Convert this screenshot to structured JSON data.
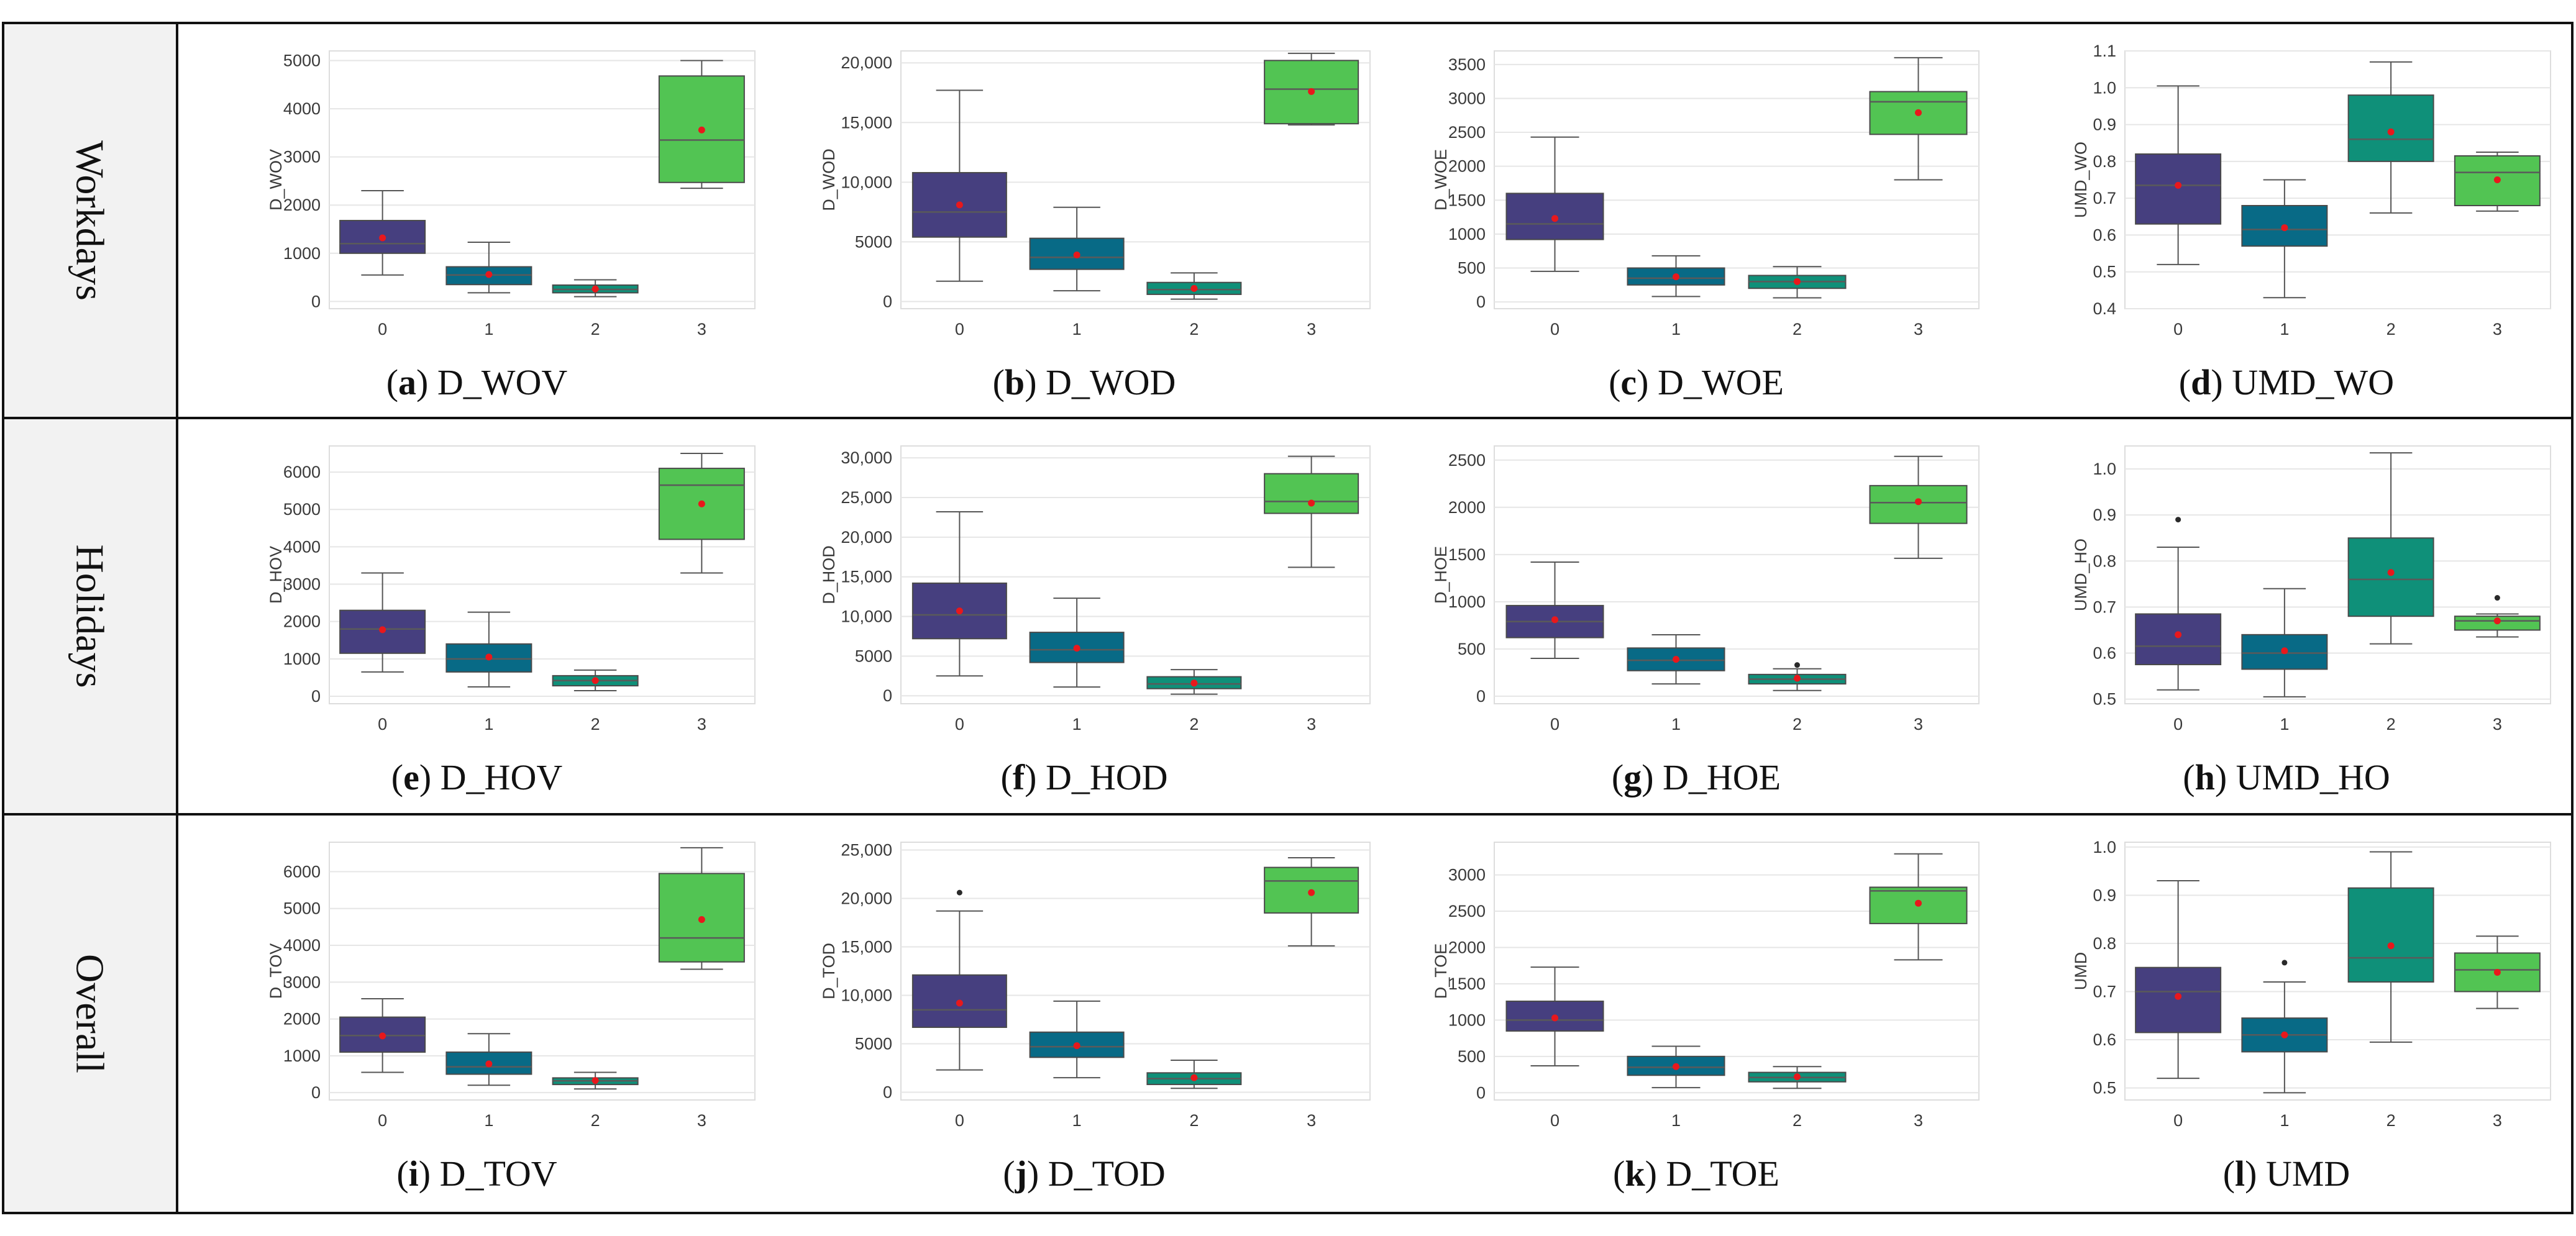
{
  "rows": [
    {
      "label": "Workdays"
    },
    {
      "label": "Holidays"
    },
    {
      "label": "Overall"
    }
  ],
  "colors": {
    "cluster": [
      "#463f7f",
      "#086a86",
      "#0f9079",
      "#52c453"
    ],
    "mean_marker": "#e8181c",
    "whisker": "#555555",
    "grid": "#e6e6e6",
    "frame": "#111111",
    "label_bg": "#f2f2f2"
  },
  "chart_data": [
    {
      "type": "box",
      "caption_letter": "a",
      "caption_name": "D_WOV",
      "ylabel": "D_WOV",
      "categories": [
        "0",
        "1",
        "2",
        "3"
      ],
      "yticks": [
        0,
        1000,
        2000,
        3000,
        4000,
        5000
      ],
      "ytick_labels": [
        "0",
        "1000",
        "2000",
        "3000",
        "4000",
        "5000"
      ],
      "ylim": [
        -150,
        5200
      ],
      "boxes": [
        {
          "whislo": 550,
          "q1": 1000,
          "med": 1200,
          "q3": 1680,
          "whishi": 2300,
          "mean": 1320,
          "fliers": []
        },
        {
          "whislo": 180,
          "q1": 350,
          "med": 550,
          "q3": 720,
          "whishi": 1230,
          "mean": 560,
          "fliers": []
        },
        {
          "whislo": 100,
          "q1": 180,
          "med": 250,
          "q3": 340,
          "whishi": 450,
          "mean": 260,
          "fliers": []
        },
        {
          "whislo": 2350,
          "q1": 2470,
          "med": 3350,
          "q3": 4680,
          "whishi": 5000,
          "mean": 3560,
          "fliers": []
        }
      ]
    },
    {
      "type": "box",
      "caption_letter": "b",
      "caption_name": "D_WOD",
      "ylabel": "D_WOD",
      "categories": [
        "0",
        "1",
        "2",
        "3"
      ],
      "yticks": [
        0,
        5000,
        10000,
        15000,
        20000
      ],
      "ytick_labels": [
        "0",
        "5000",
        "10,000",
        "15,000",
        "20,000"
      ],
      "ylim": [
        -600,
        21000
      ],
      "boxes": [
        {
          "whislo": 1700,
          "q1": 5400,
          "med": 7500,
          "q3": 10800,
          "whishi": 17700,
          "mean": 8100,
          "fliers": []
        },
        {
          "whislo": 900,
          "q1": 2700,
          "med": 3700,
          "q3": 5300,
          "whishi": 7900,
          "mean": 3900,
          "fliers": []
        },
        {
          "whislo": 200,
          "q1": 600,
          "med": 1000,
          "q3": 1600,
          "whishi": 2400,
          "mean": 1100,
          "fliers": []
        },
        {
          "whislo": 14800,
          "q1": 14900,
          "med": 17800,
          "q3": 20200,
          "whishi": 20800,
          "mean": 17600,
          "fliers": []
        }
      ]
    },
    {
      "type": "box",
      "caption_letter": "c",
      "caption_name": "D_WOE",
      "ylabel": "D_WOE",
      "categories": [
        "0",
        "1",
        "2",
        "3"
      ],
      "yticks": [
        0,
        500,
        1000,
        1500,
        2000,
        2500,
        3000,
        3500
      ],
      "ytick_labels": [
        "0",
        "500",
        "1000",
        "1500",
        "2000",
        "2500",
        "3000",
        "3500"
      ],
      "ylim": [
        -100,
        3700
      ],
      "boxes": [
        {
          "whislo": 450,
          "q1": 920,
          "med": 1150,
          "q3": 1600,
          "whishi": 2430,
          "mean": 1230,
          "fliers": []
        },
        {
          "whislo": 80,
          "q1": 250,
          "med": 350,
          "q3": 500,
          "whishi": 680,
          "mean": 370,
          "fliers": []
        },
        {
          "whislo": 60,
          "q1": 200,
          "med": 300,
          "q3": 390,
          "whishi": 520,
          "mean": 300,
          "fliers": []
        },
        {
          "whislo": 1800,
          "q1": 2470,
          "med": 2950,
          "q3": 3100,
          "whishi": 3600,
          "mean": 2790,
          "fliers": []
        }
      ]
    },
    {
      "type": "box",
      "caption_letter": "d",
      "caption_name": "UMD_WO",
      "ylabel": "UMD_WO",
      "categories": [
        "0",
        "1",
        "2",
        "3"
      ],
      "yticks": [
        0.4,
        0.5,
        0.6,
        0.7,
        0.8,
        0.9,
        1.0,
        1.1
      ],
      "ytick_labels": [
        "0.4",
        "0.5",
        "0.6",
        "0.7",
        "0.8",
        "0.9",
        "1.0",
        "1.1"
      ],
      "ylim": [
        0.4,
        1.1
      ],
      "boxes": [
        {
          "whislo": 0.52,
          "q1": 0.63,
          "med": 0.735,
          "q3": 0.82,
          "whishi": 1.005,
          "mean": 0.735,
          "fliers": []
        },
        {
          "whislo": 0.43,
          "q1": 0.57,
          "med": 0.615,
          "q3": 0.68,
          "whishi": 0.75,
          "mean": 0.62,
          "fliers": []
        },
        {
          "whislo": 0.66,
          "q1": 0.8,
          "med": 0.86,
          "q3": 0.98,
          "whishi": 1.07,
          "mean": 0.88,
          "fliers": []
        },
        {
          "whislo": 0.665,
          "q1": 0.68,
          "med": 0.77,
          "q3": 0.815,
          "whishi": 0.825,
          "mean": 0.75,
          "fliers": []
        }
      ]
    },
    {
      "type": "box",
      "caption_letter": "e",
      "caption_name": "D_HOV",
      "ylabel": "D_HOV",
      "categories": [
        "0",
        "1",
        "2",
        "3"
      ],
      "yticks": [
        0,
        1000,
        2000,
        3000,
        4000,
        5000,
        6000
      ],
      "ytick_labels": [
        "0",
        "1000",
        "2000",
        "3000",
        "4000",
        "5000",
        "6000"
      ],
      "ylim": [
        -200,
        6700
      ],
      "boxes": [
        {
          "whislo": 650,
          "q1": 1150,
          "med": 1800,
          "q3": 2300,
          "whishi": 3300,
          "mean": 1780,
          "fliers": []
        },
        {
          "whislo": 250,
          "q1": 650,
          "med": 1000,
          "q3": 1400,
          "whishi": 2250,
          "mean": 1050,
          "fliers": []
        },
        {
          "whislo": 150,
          "q1": 280,
          "med": 420,
          "q3": 550,
          "whishi": 700,
          "mean": 420,
          "fliers": []
        },
        {
          "whislo": 3300,
          "q1": 4200,
          "med": 5650,
          "q3": 6100,
          "whishi": 6500,
          "mean": 5150,
          "fliers": []
        }
      ]
    },
    {
      "type": "box",
      "caption_letter": "f",
      "caption_name": "D_HOD",
      "ylabel": "D_HOD",
      "categories": [
        "0",
        "1",
        "2",
        "3"
      ],
      "yticks": [
        0,
        5000,
        10000,
        15000,
        20000,
        25000,
        30000
      ],
      "ytick_labels": [
        "0",
        "5000",
        "10,000",
        "15,000",
        "20,000",
        "25,000",
        "30,000"
      ],
      "ylim": [
        -1000,
        31500
      ],
      "boxes": [
        {
          "whislo": 2500,
          "q1": 7200,
          "med": 10200,
          "q3": 14200,
          "whishi": 23200,
          "mean": 10700,
          "fliers": []
        },
        {
          "whislo": 1100,
          "q1": 4200,
          "med": 5800,
          "q3": 8000,
          "whishi": 12300,
          "mean": 6000,
          "fliers": []
        },
        {
          "whislo": 200,
          "q1": 900,
          "med": 1500,
          "q3": 2400,
          "whishi": 3300,
          "mean": 1600,
          "fliers": []
        },
        {
          "whislo": 16200,
          "q1": 23000,
          "med": 24500,
          "q3": 28000,
          "whishi": 30200,
          "mean": 24300,
          "fliers": []
        }
      ]
    },
    {
      "type": "box",
      "caption_letter": "g",
      "caption_name": "D_HOE",
      "ylabel": "D_HOE",
      "categories": [
        "0",
        "1",
        "2",
        "3"
      ],
      "yticks": [
        0,
        500,
        1000,
        1500,
        2000,
        2500
      ],
      "ytick_labels": [
        "0",
        "500",
        "1000",
        "1500",
        "2000",
        "2500"
      ],
      "ylim": [
        -80,
        2650
      ],
      "boxes": [
        {
          "whislo": 400,
          "q1": 620,
          "med": 790,
          "q3": 960,
          "whishi": 1420,
          "mean": 810,
          "fliers": []
        },
        {
          "whislo": 130,
          "q1": 270,
          "med": 380,
          "q3": 510,
          "whishi": 650,
          "mean": 390,
          "fliers": []
        },
        {
          "whislo": 60,
          "q1": 130,
          "med": 180,
          "q3": 230,
          "whishi": 290,
          "mean": 190,
          "fliers": [
            330
          ]
        },
        {
          "whislo": 1460,
          "q1": 1830,
          "med": 2050,
          "q3": 2230,
          "whishi": 2540,
          "mean": 2060,
          "fliers": []
        }
      ]
    },
    {
      "type": "box",
      "caption_letter": "h",
      "caption_name": "UMD_HO",
      "ylabel": "UMD_HO",
      "categories": [
        "0",
        "1",
        "2",
        "3"
      ],
      "yticks": [
        0.5,
        0.6,
        0.7,
        0.8,
        0.9,
        1.0
      ],
      "ytick_labels": [
        "0.5",
        "0.6",
        "0.7",
        "0.8",
        "0.9",
        "1.0"
      ],
      "ylim": [
        0.49,
        1.05
      ],
      "boxes": [
        {
          "whislo": 0.52,
          "q1": 0.575,
          "med": 0.615,
          "q3": 0.685,
          "whishi": 0.83,
          "mean": 0.64,
          "fliers": [
            0.89
          ]
        },
        {
          "whislo": 0.505,
          "q1": 0.565,
          "med": 0.6,
          "q3": 0.64,
          "whishi": 0.74,
          "mean": 0.605,
          "fliers": []
        },
        {
          "whislo": 0.62,
          "q1": 0.68,
          "med": 0.76,
          "q3": 0.85,
          "whishi": 1.035,
          "mean": 0.775,
          "fliers": []
        },
        {
          "whislo": 0.635,
          "q1": 0.65,
          "med": 0.67,
          "q3": 0.68,
          "whishi": 0.685,
          "mean": 0.67,
          "fliers": [
            0.72
          ]
        }
      ]
    },
    {
      "type": "box",
      "caption_letter": "i",
      "caption_name": "D_TOV",
      "ylabel": "D_TOV",
      "categories": [
        "0",
        "1",
        "2",
        "3"
      ],
      "yticks": [
        0,
        1000,
        2000,
        3000,
        4000,
        5000,
        6000
      ],
      "ytick_labels": [
        "0",
        "1000",
        "2000",
        "3000",
        "4000",
        "5000",
        "6000"
      ],
      "ylim": [
        -200,
        6800
      ],
      "boxes": [
        {
          "whislo": 550,
          "q1": 1100,
          "med": 1550,
          "q3": 2050,
          "whishi": 2550,
          "mean": 1540,
          "fliers": []
        },
        {
          "whislo": 200,
          "q1": 500,
          "med": 700,
          "q3": 1100,
          "whishi": 1600,
          "mean": 780,
          "fliers": []
        },
        {
          "whislo": 100,
          "q1": 220,
          "med": 320,
          "q3": 400,
          "whishi": 550,
          "mean": 330,
          "fliers": []
        },
        {
          "whislo": 3350,
          "q1": 3550,
          "med": 4200,
          "q3": 5950,
          "whishi": 6650,
          "mean": 4700,
          "fliers": []
        }
      ]
    },
    {
      "type": "box",
      "caption_letter": "j",
      "caption_name": "D_TOD",
      "ylabel": "D_TOD",
      "categories": [
        "0",
        "1",
        "2",
        "3"
      ],
      "yticks": [
        0,
        5000,
        10000,
        15000,
        20000,
        25000
      ],
      "ytick_labels": [
        "0",
        "5000",
        "10,000",
        "15,000",
        "20,000",
        "25,000"
      ],
      "ylim": [
        -800,
        25800
      ],
      "boxes": [
        {
          "whislo": 2300,
          "q1": 6700,
          "med": 8500,
          "q3": 12100,
          "whishi": 18700,
          "mean": 9200,
          "fliers": [
            20600
          ]
        },
        {
          "whislo": 1500,
          "q1": 3600,
          "med": 4700,
          "q3": 6200,
          "whishi": 9400,
          "mean": 4800,
          "fliers": []
        },
        {
          "whislo": 400,
          "q1": 800,
          "med": 1400,
          "q3": 2000,
          "whishi": 3300,
          "mean": 1500,
          "fliers": []
        },
        {
          "whislo": 15100,
          "q1": 18500,
          "med": 21800,
          "q3": 23200,
          "whishi": 24200,
          "mean": 20600,
          "fliers": []
        }
      ]
    },
    {
      "type": "box",
      "caption_letter": "k",
      "caption_name": "D_TOE",
      "ylabel": "D_TOE",
      "categories": [
        "0",
        "1",
        "2",
        "3"
      ],
      "yticks": [
        0,
        500,
        1000,
        1500,
        2000,
        2500,
        3000
      ],
      "ytick_labels": [
        "0",
        "500",
        "1000",
        "1500",
        "2000",
        "2500",
        "3000"
      ],
      "ylim": [
        -100,
        3450
      ],
      "boxes": [
        {
          "whislo": 370,
          "q1": 850,
          "med": 1000,
          "q3": 1260,
          "whishi": 1730,
          "mean": 1030,
          "fliers": []
        },
        {
          "whislo": 70,
          "q1": 240,
          "med": 350,
          "q3": 500,
          "whishi": 640,
          "mean": 360,
          "fliers": []
        },
        {
          "whislo": 60,
          "q1": 150,
          "med": 210,
          "q3": 280,
          "whishi": 360,
          "mean": 220,
          "fliers": []
        },
        {
          "whislo": 1830,
          "q1": 2330,
          "med": 2780,
          "q3": 2830,
          "whishi": 3290,
          "mean": 2610,
          "fliers": []
        }
      ]
    },
    {
      "type": "box",
      "caption_letter": "l",
      "caption_name": "UMD",
      "ylabel": "UMD",
      "categories": [
        "0",
        "1",
        "2",
        "3"
      ],
      "yticks": [
        0.5,
        0.6,
        0.7,
        0.8,
        0.9,
        1.0
      ],
      "ytick_labels": [
        "0.5",
        "0.6",
        "0.7",
        "0.8",
        "0.9",
        "1.0"
      ],
      "ylim": [
        0.475,
        1.01
      ],
      "boxes": [
        {
          "whislo": 0.52,
          "q1": 0.615,
          "med": 0.7,
          "q3": 0.75,
          "whishi": 0.93,
          "mean": 0.69,
          "fliers": []
        },
        {
          "whislo": 0.49,
          "q1": 0.575,
          "med": 0.61,
          "q3": 0.645,
          "whishi": 0.72,
          "mean": 0.61,
          "fliers": [
            0.76
          ]
        },
        {
          "whislo": 0.595,
          "q1": 0.72,
          "med": 0.77,
          "q3": 0.915,
          "whishi": 0.99,
          "mean": 0.795,
          "fliers": []
        },
        {
          "whislo": 0.665,
          "q1": 0.7,
          "med": 0.745,
          "q3": 0.78,
          "whishi": 0.815,
          "mean": 0.74,
          "fliers": []
        }
      ]
    }
  ]
}
